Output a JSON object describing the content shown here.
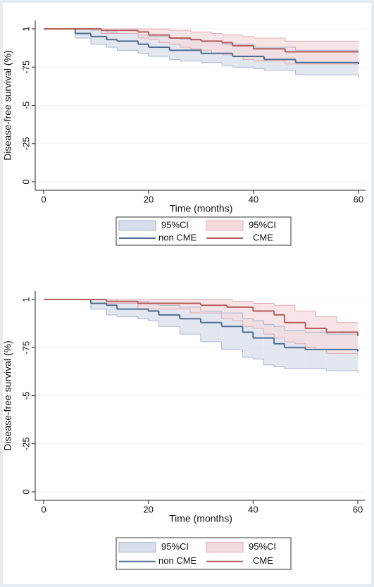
{
  "chart_data": [
    {
      "type": "km",
      "ylabel": "Disease-free survival (%)",
      "xlabel": "Time (months)",
      "xlim": [
        0,
        60
      ],
      "xticks": [
        0,
        20,
        40,
        60
      ],
      "ylim": [
        0,
        1
      ],
      "yticks": [
        0,
        {
          "value": 0.25,
          "label": "-25"
        },
        {
          "value": 0.5,
          "label": "-5"
        },
        {
          "value": 0.75,
          "label": "-75"
        },
        1
      ],
      "grid": true,
      "series": [
        {
          "name": "non CME",
          "ci_name": "95%CI",
          "color": "#4d6d92",
          "ci_color": "#d8dfea",
          "x": [
            0,
            6,
            9,
            12,
            14,
            18,
            20,
            24,
            26,
            30,
            34,
            36,
            40,
            42,
            48,
            60
          ],
          "values": [
            1,
            0.97,
            0.95,
            0.93,
            0.92,
            0.9,
            0.88,
            0.86,
            0.86,
            0.84,
            0.84,
            0.82,
            0.82,
            0.8,
            0.78,
            0.77
          ],
          "lower": [
            1,
            0.94,
            0.9,
            0.88,
            0.86,
            0.84,
            0.82,
            0.8,
            0.79,
            0.78,
            0.76,
            0.75,
            0.74,
            0.73,
            0.7,
            0.68
          ],
          "upper": [
            1,
            1,
            0.99,
            0.98,
            0.97,
            0.96,
            0.95,
            0.94,
            0.93,
            0.92,
            0.9,
            0.9,
            0.88,
            0.88,
            0.86,
            0.85
          ]
        },
        {
          "name": "CME",
          "ci_name": "95%CI",
          "color": "#b45c5c",
          "ci_color": "#f3dbde",
          "x": [
            0,
            11,
            18,
            20,
            22,
            24,
            26,
            28,
            30,
            32,
            34,
            36,
            38,
            40,
            46,
            60
          ],
          "values": [
            1,
            0.99,
            0.98,
            0.96,
            0.96,
            0.94,
            0.94,
            0.93,
            0.92,
            0.92,
            0.91,
            0.89,
            0.89,
            0.87,
            0.85,
            0.85
          ],
          "lower": [
            1,
            0.97,
            0.94,
            0.93,
            0.91,
            0.9,
            0.88,
            0.87,
            0.86,
            0.84,
            0.83,
            0.82,
            0.8,
            0.79,
            0.77,
            0.77
          ],
          "upper": [
            1,
            1,
            1,
            1,
            1,
            0.99,
            0.99,
            0.98,
            0.98,
            0.97,
            0.96,
            0.96,
            0.95,
            0.94,
            0.92,
            0.91
          ]
        }
      ]
    },
    {
      "type": "km",
      "ylabel": "Disease-free survival (%)",
      "xlabel": "Time (months)",
      "xlim": [
        0,
        60
      ],
      "xticks": [
        0,
        20,
        40,
        60
      ],
      "ylim": [
        0,
        1
      ],
      "yticks": [
        0,
        {
          "value": 0.25,
          "label": "-25"
        },
        {
          "value": 0.5,
          "label": "-5"
        },
        {
          "value": 0.75,
          "label": "-75"
        },
        1
      ],
      "grid": true,
      "series": [
        {
          "name": "non CME",
          "ci_name": "95%CI",
          "color": "#4d6d92",
          "ci_color": "#d8dfea",
          "x": [
            0,
            9,
            12,
            14,
            18,
            20,
            22,
            26,
            30,
            34,
            38,
            40,
            42,
            44,
            46,
            50,
            54,
            60
          ],
          "values": [
            1,
            0.98,
            0.97,
            0.95,
            0.95,
            0.94,
            0.92,
            0.9,
            0.88,
            0.86,
            0.83,
            0.8,
            0.8,
            0.77,
            0.75,
            0.74,
            0.74,
            0.73
          ],
          "lower": [
            1,
            0.95,
            0.92,
            0.91,
            0.9,
            0.89,
            0.86,
            0.82,
            0.78,
            0.74,
            0.7,
            0.69,
            0.66,
            0.65,
            0.64,
            0.64,
            0.63,
            0.62
          ],
          "upper": [
            1,
            1,
            1,
            0.99,
            0.99,
            0.98,
            0.97,
            0.96,
            0.94,
            0.93,
            0.9,
            0.89,
            0.87,
            0.86,
            0.84,
            0.83,
            0.82,
            0.81
          ]
        },
        {
          "name": "CME",
          "ci_name": "95%CI",
          "color": "#b45c5c",
          "ci_color": "#f3dbde",
          "x": [
            0,
            12,
            18,
            28,
            30,
            34,
            35,
            36,
            38,
            40,
            42,
            44,
            46,
            48,
            50,
            52,
            54,
            56,
            60
          ],
          "values": [
            1,
            0.99,
            0.98,
            0.98,
            0.97,
            0.97,
            0.96,
            0.96,
            0.96,
            0.94,
            0.94,
            0.92,
            0.88,
            0.88,
            0.85,
            0.85,
            0.83,
            0.83,
            0.81
          ],
          "lower": [
            1,
            0.98,
            0.95,
            0.93,
            0.93,
            0.9,
            0.9,
            0.89,
            0.86,
            0.85,
            0.82,
            0.8,
            0.78,
            0.77,
            0.75,
            0.74,
            0.72,
            0.72,
            0.71
          ],
          "upper": [
            1,
            1,
            1,
            1,
            1,
            1,
            1,
            0.99,
            0.99,
            0.98,
            0.98,
            0.97,
            0.97,
            0.94,
            0.94,
            0.91,
            0.91,
            0.88,
            0.88
          ]
        }
      ]
    }
  ]
}
